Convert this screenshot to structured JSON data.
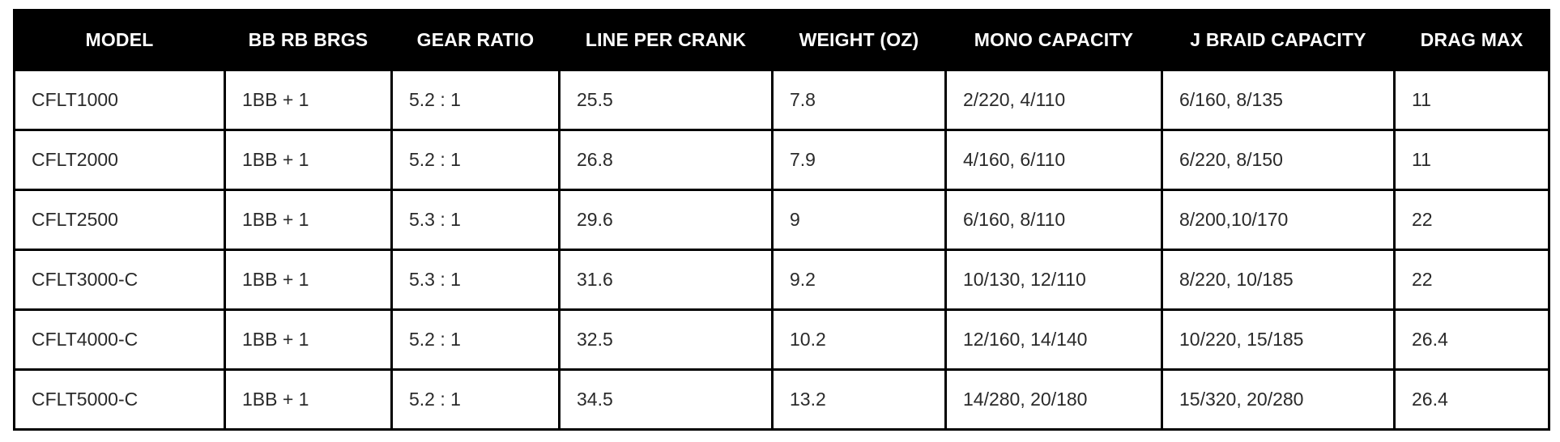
{
  "table": {
    "columns": [
      "MODEL",
      "BB RB BRGS",
      "GEAR RATIO",
      "LINE PER CRANK",
      "WEIGHT (OZ)",
      "MONO CAPACITY",
      "J BRAID CAPACITY",
      "DRAG MAX"
    ],
    "rows": [
      [
        "CFLT1000",
        "1BB + 1",
        "5.2 : 1",
        "25.5",
        "7.8",
        "2/220, 4/110",
        "6/160, 8/135",
        "11"
      ],
      [
        "CFLT2000",
        "1BB + 1",
        "5.2 : 1",
        "26.8",
        "7.9",
        "4/160, 6/110",
        "6/220, 8/150",
        "11"
      ],
      [
        "CFLT2500",
        "1BB + 1",
        "5.3 : 1",
        "29.6",
        "9",
        "6/160, 8/110",
        "8/200,10/170",
        "22"
      ],
      [
        "CFLT3000-C",
        "1BB + 1",
        "5.3 : 1",
        "31.6",
        "9.2",
        "10/130, 12/110",
        "8/220, 10/185",
        "22"
      ],
      [
        "CFLT4000-C",
        "1BB + 1",
        "5.2 : 1",
        "32.5",
        "10.2",
        "12/160, 14/140",
        "10/220, 15/185",
        "26.4"
      ],
      [
        "CFLT5000-C",
        "1BB + 1",
        "5.2 : 1",
        "34.5",
        "13.2",
        "14/280, 20/180",
        "15/320, 20/280",
        "26.4"
      ]
    ]
  }
}
